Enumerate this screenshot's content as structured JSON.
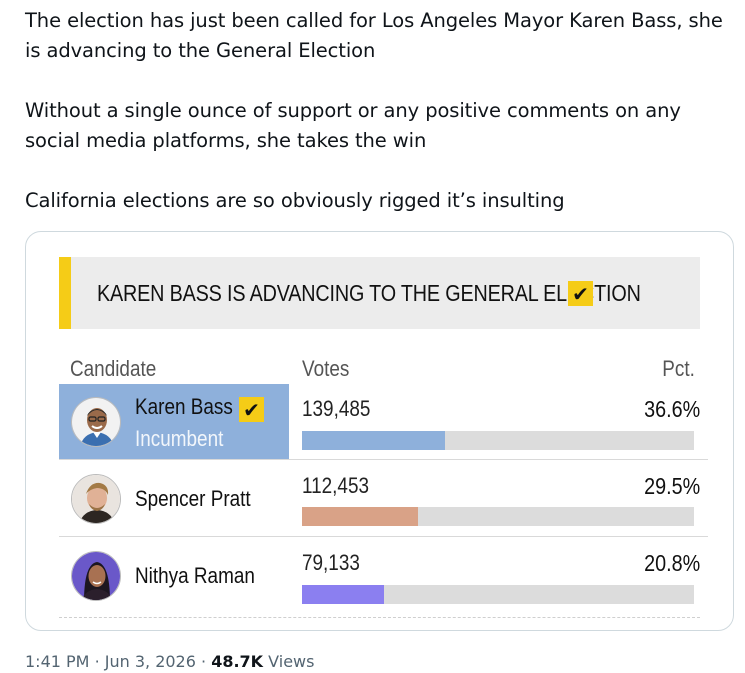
{
  "tweet": {
    "paragraphs": [
      "The election has just been called for Los Angeles Mayor Karen Bass, she is advancing to the General Election",
      "Without a single ounce of support or any positive comments on any social media platforms, she takes the win",
      "California elections are so obviously rigged it’s insulting"
    ],
    "time": "1:41 PM",
    "date": "Jun 3, 2026",
    "views_count": "48.7K",
    "views_label": "Views",
    "separator": "·"
  },
  "card": {
    "banner_title": "KAREN BASS IS ADVANCING TO THE GENERAL ELECTION",
    "check_glyph": "✔",
    "columns": {
      "candidate": "Candidate",
      "votes": "Votes",
      "pct": "Pct."
    },
    "candidates": [
      {
        "name": "Karen Bass",
        "status": "Incumbent",
        "votes": "139,485",
        "pct": "36.6%",
        "pct_value": 36.6,
        "bar_color": "#8eb0db",
        "highlight": true,
        "winner": true
      },
      {
        "name": "Spencer Pratt",
        "status": "",
        "votes": "112,453",
        "pct": "29.5%",
        "pct_value": 29.5,
        "bar_color": "#d9a287",
        "highlight": false,
        "winner": false
      },
      {
        "name": "Nithya Raman",
        "status": "",
        "votes": "79,133",
        "pct": "20.8%",
        "pct_value": 20.8,
        "bar_color": "#8b7ff0",
        "highlight": false,
        "winner": false
      }
    ]
  },
  "colors": {
    "accent_yellow": "#f5cc17",
    "highlight_blue": "#8eb0db"
  }
}
